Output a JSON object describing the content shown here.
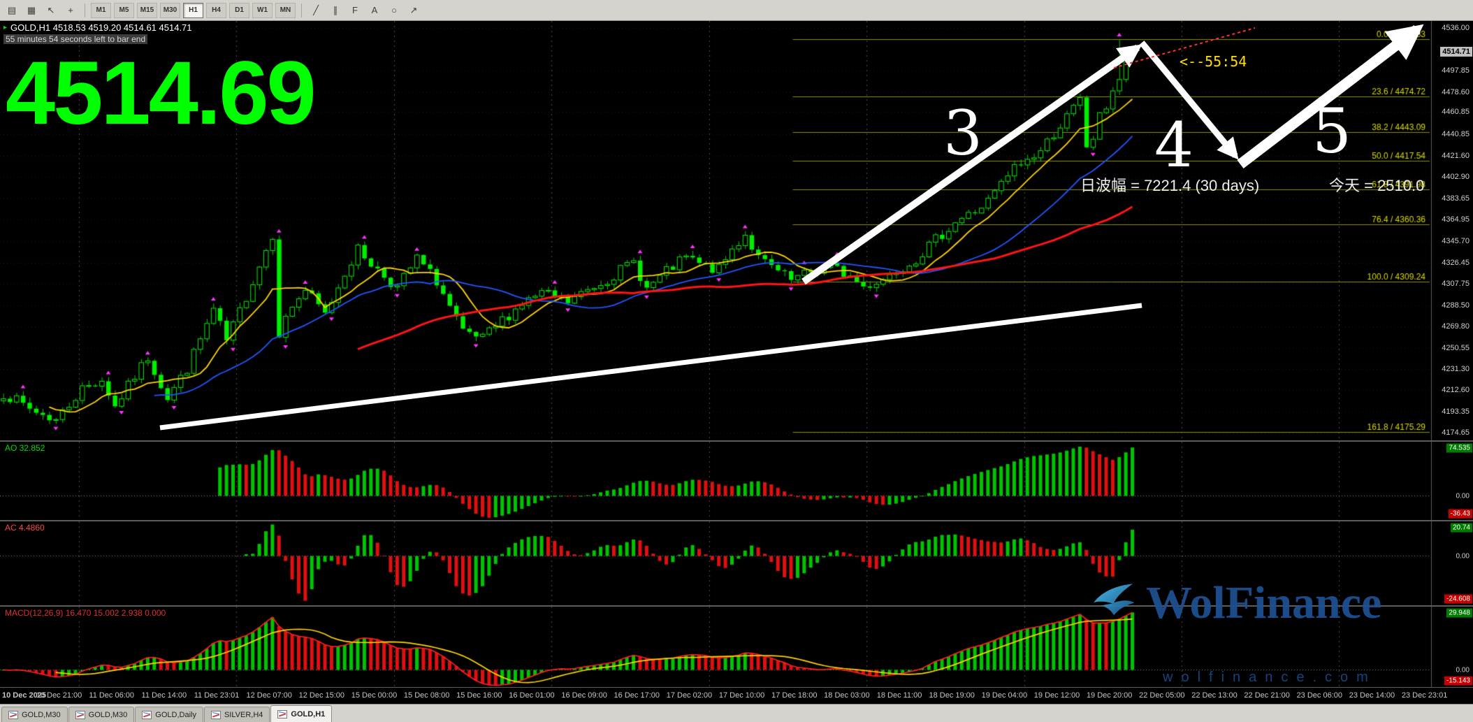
{
  "toolbar": {
    "left_icons": [
      {
        "name": "templates-icon",
        "glyph": "▤"
      },
      {
        "name": "profiles-icon",
        "glyph": "▦"
      },
      {
        "name": "cursor-icon",
        "glyph": "↖"
      },
      {
        "name": "crosshair-icon",
        "glyph": "+"
      }
    ],
    "timeframes": [
      "M1",
      "M5",
      "M15",
      "M30",
      "H1",
      "H4",
      "D1",
      "W1",
      "MN"
    ],
    "active_timeframe": "H1",
    "right_icons": [
      {
        "name": "trendline-icon",
        "glyph": "╱"
      },
      {
        "name": "channel-icon",
        "glyph": "∥"
      },
      {
        "name": "fibonacci-icon",
        "glyph": "F"
      },
      {
        "name": "text-label-icon",
        "glyph": "A"
      },
      {
        "name": "shapes-icon",
        "glyph": "○"
      },
      {
        "name": "arrow-tool-icon",
        "glyph": "↗"
      }
    ]
  },
  "header": {
    "symbol_line": "GOLD,H1  4518.53 4519.20 4514.61 4514.71",
    "countdown_line": "55 minutes 54 seconds left to bar end",
    "big_price": "4514.69"
  },
  "annotations": {
    "countdown_label": "<--55:54",
    "range_label": "日波幅 = 7221.4  (30 days)",
    "today_label": "今天 = 2510.0",
    "wave3": "3",
    "wave4": "4",
    "wave5": "5"
  },
  "watermark": {
    "brand": "WolFinance",
    "url": "wolfinance.com"
  },
  "price_axis": {
    "labels": [
      "4536.00",
      "4497.85",
      "4478.60",
      "4460.85",
      "4440.85",
      "4421.60",
      "4402.90",
      "4383.65",
      "4364.95",
      "4345.70",
      "4326.45",
      "4307.75",
      "4288.50",
      "4269.80",
      "4250.55",
      "4231.30",
      "4212.60",
      "4193.35",
      "4174.65"
    ],
    "current_tag": "4514.71"
  },
  "fib": {
    "levels": [
      {
        "label": "0.0 / 4525.83",
        "price": 4525.83
      },
      {
        "label": "23.6 / 4474.72",
        "price": 4474.72
      },
      {
        "label": "38.2 / 4443.09",
        "price": 4443.09
      },
      {
        "label": "50.0 / 4417.54",
        "price": 4417.54
      },
      {
        "label": "61.8 / 4391.98",
        "price": 4391.98
      },
      {
        "label": "76.4 / 4360.36",
        "price": 4360.36
      },
      {
        "label": "100.0 / 4309.24",
        "price": 4309.24
      },
      {
        "label": "161.8 / 4175.29",
        "price": 4175.29
      }
    ]
  },
  "indicators": {
    "ao": {
      "label": "AO 32.852",
      "axis_max": "74.535",
      "axis_zero": "0.00",
      "axis_min": "-36.43"
    },
    "ac": {
      "label": "AC 4.4860",
      "axis_max": "20.74",
      "axis_zero": "0.00",
      "axis_min": "-24.608"
    },
    "macd": {
      "label": "MACD(12,26,9) 16.470 15.002 2.938 0.000",
      "axis_max": "29.948",
      "axis_zero": "0.00",
      "axis_min": "-15.143"
    }
  },
  "time_axis": {
    "labels": [
      "10 Dec 2025",
      "10 Dec 21:00",
      "11 Dec 06:00",
      "11 Dec 14:00",
      "11 Dec 23:01",
      "12 Dec 07:00",
      "12 Dec 15:00",
      "15 Dec 00:00",
      "15 Dec 08:00",
      "15 Dec 16:00",
      "16 Dec 01:00",
      "16 Dec 09:00",
      "16 Dec 17:00",
      "17 Dec 02:00",
      "17 Dec 10:00",
      "17 Dec 18:00",
      "18 Dec 03:00",
      "18 Dec 11:00",
      "18 Dec 19:00",
      "19 Dec 04:00",
      "19 Dec 12:00",
      "19 Dec 20:00",
      "22 Dec 05:00",
      "22 Dec 13:00",
      "22 Dec 21:00",
      "23 Dec 06:00",
      "23 Dec 14:00",
      "23 Dec 23:01"
    ]
  },
  "tabs": [
    "GOLD,M30",
    "GOLD,M30",
    "GOLD,Daily",
    "SILVER,H4",
    "GOLD,H1"
  ],
  "active_tab_index": 4,
  "colors": {
    "background": "#000000",
    "bull": "#00ee00",
    "bear_fill": "#00ee00",
    "wick": "#00cc00",
    "fib_line": "#8f8f00",
    "fib_label": "#d8d800",
    "fractal": "#ff33ff",
    "hist_up": "#00c400",
    "hist_down": "#e01010",
    "macd_line": "#ff2020",
    "signal_line": "#ffd400",
    "tag_green": "#007c00",
    "tag_red": "#c40000",
    "big_price": "#00ff00",
    "grid": "#1e1e1e",
    "separator_dash": "#4f4f4f",
    "pane_separator": "#5c5c5c",
    "ao_label": "#00dd00",
    "ac_label": "#ff4444",
    "macd_label": "#e03030",
    "watermark_blue": "#1d5191",
    "watermark_url_blue": "#16437d",
    "annotation_yellow": "#ffe000"
  },
  "chart_data": {
    "type": "candlestick",
    "symbol": "GOLD",
    "timeframe": "H1",
    "ohlc_header": {
      "open": 4518.53,
      "high": 4519.2,
      "low": 4514.61,
      "close": 4514.71
    },
    "price_range": {
      "min": 4168,
      "max": 4542
    },
    "bars": 173,
    "timeline_bars": 218,
    "seed": 7,
    "noise": 5,
    "wick": 4.2,
    "recent_high": 4525.83,
    "day_separator_first": 12,
    "day_separator_every": 24,
    "label_first_bar": 1,
    "labels_every": 8,
    "fib_start_frac": 0.554,
    "ma": {
      "fast": {
        "period": 8,
        "color": "#ffd400"
      },
      "mid": {
        "period": 24,
        "color": "#2057ff"
      },
      "slow": {
        "period": 55,
        "color": "#ff1515"
      }
    },
    "price_path": [
      [
        0,
        4210
      ],
      [
        4,
        4196
      ],
      [
        8,
        4186
      ],
      [
        12,
        4214
      ],
      [
        15,
        4222
      ],
      [
        17,
        4198
      ],
      [
        20,
        4225
      ],
      [
        22,
        4242
      ],
      [
        25,
        4206
      ],
      [
        28,
        4232
      ],
      [
        32,
        4284
      ],
      [
        34,
        4256
      ],
      [
        38,
        4310
      ],
      [
        41,
        4352
      ],
      [
        42,
        4264
      ],
      [
        44,
        4288
      ],
      [
        46,
        4302
      ],
      [
        49,
        4280
      ],
      [
        52,
        4318
      ],
      [
        54,
        4338
      ],
      [
        57,
        4320
      ],
      [
        60,
        4304
      ],
      [
        63,
        4330
      ],
      [
        66,
        4310
      ],
      [
        70,
        4263
      ],
      [
        73,
        4258
      ],
      [
        76,
        4275
      ],
      [
        79,
        4290
      ],
      [
        82,
        4299
      ],
      [
        86,
        4291
      ],
      [
        89,
        4302
      ],
      [
        92,
        4312
      ],
      [
        96,
        4327
      ],
      [
        98,
        4303
      ],
      [
        101,
        4318
      ],
      [
        104,
        4331
      ],
      [
        107,
        4322
      ],
      [
        109,
        4320
      ],
      [
        111,
        4338
      ],
      [
        113,
        4352
      ],
      [
        115,
        4330
      ],
      [
        117,
        4322
      ],
      [
        120,
        4310
      ],
      [
        123,
        4318
      ],
      [
        126,
        4323
      ],
      [
        129,
        4314
      ],
      [
        131,
        4305
      ],
      [
        134,
        4312
      ],
      [
        136,
        4320
      ],
      [
        139,
        4330
      ],
      [
        141,
        4341
      ],
      [
        143,
        4352
      ],
      [
        145,
        4363
      ],
      [
        148,
        4372
      ],
      [
        150,
        4381
      ],
      [
        152,
        4396
      ],
      [
        154,
        4411
      ],
      [
        156,
        4418
      ],
      [
        158,
        4426
      ],
      [
        160,
        4442
      ],
      [
        162,
        4456
      ],
      [
        164,
        4471
      ],
      [
        165,
        4430
      ],
      [
        166,
        4438
      ],
      [
        167,
        4456
      ],
      [
        168,
        4466
      ],
      [
        169,
        4481
      ],
      [
        170,
        4490
      ],
      [
        171,
        4502
      ],
      [
        172,
        4518
      ]
    ]
  }
}
